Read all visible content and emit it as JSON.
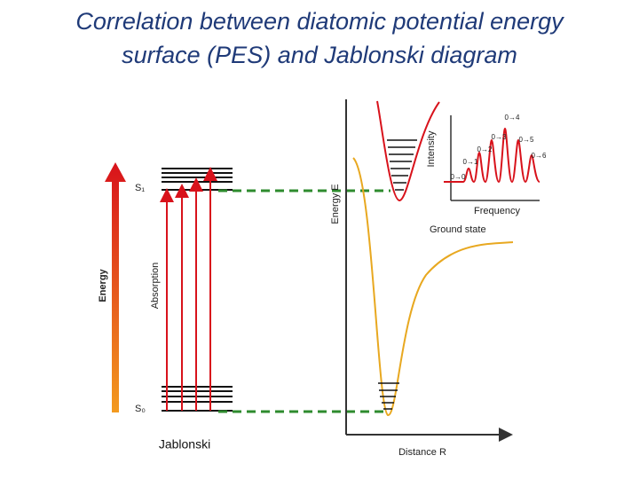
{
  "title": {
    "lines": [
      "Correlation between diatomic potential energy",
      "surface (PES) and Jablonski diagram"
    ]
  },
  "jablonski": {
    "s1": "S₁",
    "s0": "S₀",
    "energy": "Energy",
    "absorption": "Absorption",
    "caption": "Jablonski"
  },
  "pes": {
    "y_axis": "Energy E",
    "x_axis": "Distance R",
    "ground_state": "Ground state"
  },
  "spectrum": {
    "y_axis": "Intensity",
    "x_axis": "Frequency",
    "transitions": [
      "0→0",
      "0→1",
      "0→2",
      "0→3",
      "0→4",
      "0→5",
      "0→6"
    ]
  }
}
